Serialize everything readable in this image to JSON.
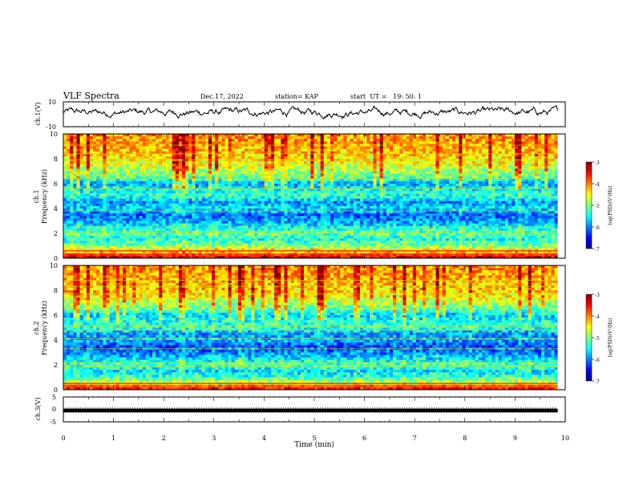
{
  "header": {
    "title": "VLF Spectra",
    "date": "Dec.17, 2022",
    "station": "station= KAP",
    "start_ut": "start  UT =   19: 50: 1"
  },
  "chart_data": [
    {
      "type": "line",
      "panel": "ch1-waveform",
      "ylabel": "ch.1(V)",
      "ylim": [
        -10,
        10
      ],
      "y_ticks": [
        "10",
        "-10"
      ],
      "xlim": [
        0,
        10
      ],
      "note_values": "signal fluctuating roughly between -6 and 8 V"
    },
    {
      "type": "heatmap",
      "panel": "ch1-spectrogram",
      "ylabel_line1": "ch.1",
      "ylabel_line2": "Frequency (kHz)",
      "ylim": [
        0,
        10
      ],
      "y_ticks": [
        "0",
        "2",
        "4",
        "6",
        "8",
        "10"
      ],
      "xlim": [
        0,
        10
      ],
      "data_extent_x": [
        0,
        9.85
      ],
      "colorbar": {
        "label": "log(PSD)(V²/Hz)",
        "range": [
          -7,
          -3
        ],
        "ticks": [
          "-3",
          "-4",
          "-5",
          "-6",
          "-7"
        ]
      },
      "frequency_profile_khz": [
        0,
        0.5,
        1,
        1.5,
        2,
        2.5,
        3,
        3.5,
        4,
        4.5,
        5,
        5.5,
        6,
        6.5,
        7,
        7.5,
        8,
        8.5,
        9,
        9.5,
        10
      ],
      "level_profile": [
        -3.2,
        -4.3,
        -5.0,
        -5.4,
        -5.1,
        -5.5,
        -5.9,
        -6.1,
        -5.6,
        -5.9,
        -5.3,
        -5.5,
        -5.8,
        -5.2,
        -4.9,
        -4.6,
        -4.4,
        -4.3,
        -4.2,
        -4.1,
        -4.1
      ],
      "tonal_lines_khz": [
        0.3,
        0.6,
        1.2,
        2.1,
        2.5,
        3.8,
        5.2,
        5.6,
        6.4,
        6.7,
        7.9,
        8.4,
        9.1
      ]
    },
    {
      "type": "heatmap",
      "panel": "ch2-spectrogram",
      "ylabel_line1": "ch.2",
      "ylabel_line2": "Frequency (kHz)",
      "ylim": [
        0,
        10
      ],
      "y_ticks": [
        "0",
        "2",
        "4",
        "6",
        "8",
        "10"
      ],
      "xlim": [
        0,
        10
      ],
      "data_extent_x": [
        0,
        9.85
      ],
      "colorbar": {
        "label": "log(PSD)(V²/Hz)",
        "range": [
          -7,
          -3
        ],
        "ticks": [
          "-3",
          "-4",
          "-5",
          "-6",
          "-7"
        ]
      },
      "frequency_profile_khz": [
        0,
        0.5,
        1,
        1.5,
        2,
        2.5,
        3,
        3.5,
        4,
        4.5,
        5,
        5.5,
        6,
        6.5,
        7,
        7.5,
        8,
        8.5,
        9,
        9.5,
        10
      ],
      "level_profile": [
        -3.3,
        -4.6,
        -5.3,
        -5.6,
        -5.2,
        -5.6,
        -6.0,
        -6.2,
        -5.8,
        -5.9,
        -5.3,
        -5.4,
        -5.7,
        -5.1,
        -4.8,
        -4.5,
        -4.3,
        -4.3,
        -4.2,
        -4.1,
        -4.1
      ],
      "tonal_lines_khz": [
        0.3,
        0.5,
        1.9,
        2.2,
        3.3,
        4.1,
        4.8,
        5.1,
        6.3,
        6.6,
        7.7,
        8.3,
        8.8
      ]
    },
    {
      "type": "line",
      "panel": "ch3-trace",
      "ylabel": "ch.3(V)",
      "ylim": [
        -5,
        5
      ],
      "y_ticks": [
        "5",
        "0",
        "-5"
      ],
      "xlim": [
        0,
        10
      ],
      "note_values": "dense square-wave signal between about -1.2 and 0.3 V"
    }
  ],
  "x_axis": {
    "label": "Time (min)",
    "ticks": [
      "0",
      "1",
      "2",
      "3",
      "4",
      "5",
      "6",
      "7",
      "8",
      "9",
      "10"
    ]
  },
  "colors": {
    "jet": [
      "#00007f",
      "#0000ff",
      "#007fff",
      "#00ffff",
      "#7fff7f",
      "#ffff00",
      "#ff7f00",
      "#ff0000",
      "#7f0000"
    ]
  }
}
